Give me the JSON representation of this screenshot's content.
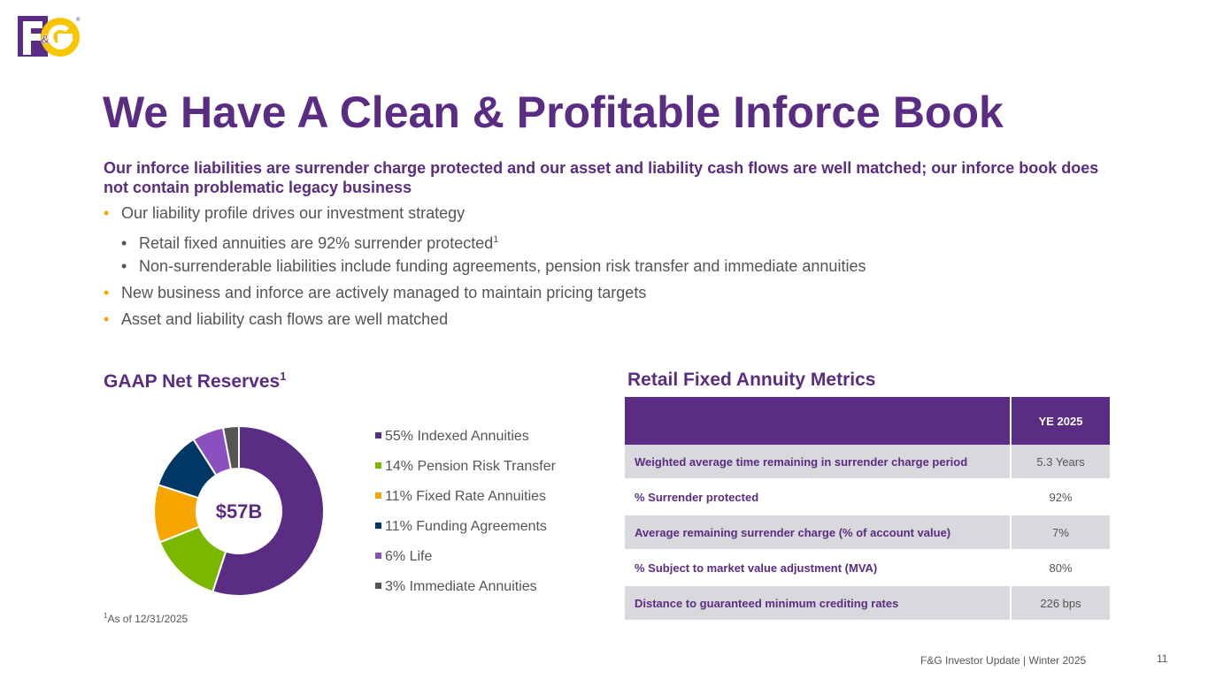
{
  "logo": {
    "text": "F&G",
    "colors": {
      "purple": "#5b2c83",
      "yellow": "#f7c600"
    }
  },
  "title": "We Have A Clean & Profitable Inforce Book",
  "subtitle": "Our inforce liabilities are surrender charge protected and our asset and liability cash flows are well matched; our inforce book does not contain problematic legacy business",
  "bullets": {
    "b1": "Our liability profile drives our investment strategy",
    "b1a": "Retail fixed annuities are 92% surrender protected",
    "b1a_sup": "1",
    "b1b": "Non-surrenderable liabilities include funding agreements, pension risk transfer and immediate annuities",
    "b2": "New business and inforce are actively managed to maintain pricing targets",
    "b3": "Asset and liability cash flows are well matched"
  },
  "gaap": {
    "title": "GAAP Net Reserves",
    "title_sup": "1"
  },
  "chart_data": {
    "type": "pie",
    "title": "GAAP Net Reserves",
    "center_label": "$57B",
    "categories": [
      "Indexed Annuities",
      "Pension Risk Transfer",
      "Fixed Rate Annuities",
      "Funding Agreements",
      "Life",
      "Immediate Annuities"
    ],
    "values": [
      55,
      14,
      11,
      11,
      6,
      3
    ],
    "legend_labels": [
      "55% Indexed Annuities",
      "14% Pension Risk Transfer",
      "11% Fixed Rate Annuities",
      "11% Funding Agreements",
      "6% Life",
      "3% Immediate Annuities"
    ],
    "colors": [
      "#5b2c83",
      "#7ab800",
      "#f7a600",
      "#003865",
      "#8c4fbf",
      "#555555"
    ],
    "legend_position": "right"
  },
  "footnote": {
    "sup": "1",
    "text": "As of 12/31/2025"
  },
  "metrics": {
    "title": "Retail Fixed Annuity Metrics",
    "header": "YE 2025",
    "rows": [
      {
        "label": "Weighted average time remaining in surrender charge period",
        "value": "5.3 Years"
      },
      {
        "label": "% Surrender protected",
        "value": "92%"
      },
      {
        "label": "Average remaining surrender charge (% of account value)",
        "value": "7%"
      },
      {
        "label": "% Subject to market value adjustment (MVA)",
        "value": "80%"
      },
      {
        "label": "Distance to guaranteed minimum crediting rates",
        "value": "226 bps"
      }
    ]
  },
  "footer": {
    "text": "F&G Investor Update |  Winter 2025",
    "page": "11"
  }
}
